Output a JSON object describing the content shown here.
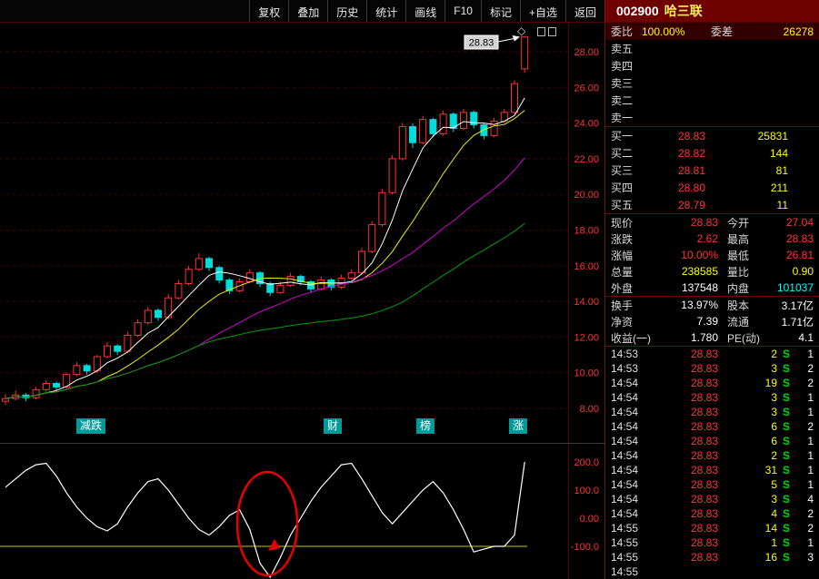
{
  "toolbar": {
    "buttons": [
      "复权",
      "叠加",
      "历史",
      "统计",
      "画线",
      "F10",
      "标记",
      "+自选",
      "返回"
    ]
  },
  "header": {
    "code": "002900",
    "name": "哈三联"
  },
  "icons": {
    "diamond": "◇"
  },
  "ticker_items": [
    "减跌",
    "财",
    "榜",
    "涨"
  ],
  "colors": {
    "up": "#ff3232",
    "down": "#00dcdc",
    "ma": [
      "#ffffff",
      "#f0f000",
      "#d400d4",
      "#00a000"
    ],
    "axis_text": "#ff3232",
    "grid": "#4a0000",
    "indicator_line": "#ffffff",
    "threshold_line": "#c8c800",
    "annotation": "#e60000",
    "tag_bg": "#d4d4d4"
  },
  "chart_data": [
    {
      "type": "candlestick",
      "title": "002900 哈三联 日K线",
      "last_price": 28.83,
      "last_price_label": "28.83",
      "ma_periods": [
        5,
        10,
        20,
        40
      ],
      "ylim": [
        7.5,
        29.5
      ],
      "y_ticks": [
        28,
        26,
        24,
        22,
        20,
        18,
        16,
        14,
        12,
        10,
        8
      ],
      "y_tick_labels": [
        "28.00",
        "26.00",
        "24.00",
        "22.00",
        "20.00",
        "18.00",
        "16.00",
        "14.00",
        "12.00",
        "10.00",
        "8.00"
      ],
      "ohlc": [
        [
          8.4,
          8.8,
          8.2,
          8.55
        ],
        [
          8.55,
          9.0,
          8.45,
          8.75
        ],
        [
          8.75,
          8.85,
          8.4,
          8.6
        ],
        [
          8.6,
          9.2,
          8.5,
          9.05
        ],
        [
          9.05,
          9.6,
          8.95,
          9.4
        ],
        [
          9.4,
          9.5,
          9.0,
          9.2
        ],
        [
          9.2,
          10.0,
          9.1,
          9.9
        ],
        [
          9.9,
          10.6,
          9.8,
          10.4
        ],
        [
          10.4,
          10.5,
          9.9,
          10.1
        ],
        [
          10.1,
          11.0,
          10.0,
          10.9
        ],
        [
          10.9,
          11.7,
          10.8,
          11.5
        ],
        [
          11.5,
          11.6,
          11.0,
          11.2
        ],
        [
          11.2,
          12.3,
          11.1,
          12.1
        ],
        [
          12.1,
          13.0,
          12.0,
          12.8
        ],
        [
          12.8,
          13.7,
          12.7,
          13.5
        ],
        [
          13.5,
          13.6,
          12.9,
          13.1
        ],
        [
          13.1,
          14.4,
          13.0,
          14.2
        ],
        [
          14.2,
          15.2,
          14.1,
          15.0
        ],
        [
          15.0,
          16.0,
          14.9,
          15.8
        ],
        [
          15.8,
          16.7,
          15.7,
          16.4
        ],
        [
          16.4,
          16.5,
          15.7,
          15.9
        ],
        [
          15.9,
          16.0,
          15.0,
          15.2
        ],
        [
          15.2,
          15.3,
          14.4,
          14.6
        ],
        [
          14.6,
          15.3,
          14.5,
          15.1
        ],
        [
          15.1,
          15.8,
          15.0,
          15.6
        ],
        [
          15.6,
          15.7,
          14.8,
          15.0
        ],
        [
          15.0,
          15.1,
          14.3,
          14.5
        ],
        [
          14.5,
          15.1,
          14.4,
          14.9
        ],
        [
          14.9,
          15.6,
          14.8,
          15.4
        ],
        [
          15.4,
          15.5,
          14.9,
          15.1
        ],
        [
          15.1,
          15.2,
          14.5,
          14.7
        ],
        [
          14.7,
          15.4,
          14.6,
          15.2
        ],
        [
          15.2,
          15.3,
          14.6,
          14.8
        ],
        [
          14.8,
          15.5,
          14.7,
          15.3
        ],
        [
          15.3,
          15.8,
          15.2,
          15.6
        ],
        [
          15.6,
          17.0,
          15.5,
          16.8
        ],
        [
          16.8,
          18.5,
          16.7,
          18.3
        ],
        [
          18.3,
          20.3,
          18.2,
          20.1
        ],
        [
          20.1,
          22.2,
          20.0,
          22.0
        ],
        [
          22.0,
          24.0,
          21.9,
          23.8
        ],
        [
          23.8,
          24.0,
          22.6,
          22.9
        ],
        [
          22.9,
          24.4,
          22.8,
          24.2
        ],
        [
          24.2,
          24.3,
          23.2,
          23.4
        ],
        [
          23.4,
          24.7,
          23.3,
          24.5
        ],
        [
          24.5,
          24.6,
          23.5,
          23.7
        ],
        [
          23.7,
          24.8,
          23.6,
          24.6
        ],
        [
          24.6,
          24.7,
          23.7,
          23.9
        ],
        [
          23.9,
          24.0,
          23.1,
          23.3
        ],
        [
          23.3,
          24.3,
          23.2,
          24.1
        ],
        [
          24.1,
          24.8,
          24.0,
          24.6
        ],
        [
          24.6,
          26.4,
          24.5,
          26.21
        ],
        [
          27.04,
          28.83,
          26.81,
          28.83
        ]
      ]
    },
    {
      "type": "line",
      "name": "oscillator",
      "ylim": [
        -250,
        250
      ],
      "y_ticks": [
        200,
        100,
        0,
        -100
      ],
      "y_tick_labels": [
        "200.0",
        "100.0",
        "0.00",
        "-100.0"
      ],
      "threshold": -100,
      "annotation": "red-circle-highlight-on-dip",
      "values": [
        110,
        140,
        170,
        190,
        195,
        150,
        90,
        40,
        0,
        -30,
        -45,
        -20,
        40,
        90,
        130,
        140,
        100,
        50,
        0,
        -40,
        -60,
        -30,
        10,
        30,
        -40,
        -160,
        -210,
        -140,
        -60,
        0,
        60,
        110,
        150,
        190,
        195,
        140,
        80,
        20,
        -20,
        20,
        60,
        100,
        130,
        90,
        30,
        -40,
        -120,
        -110,
        -100,
        -100,
        -60,
        200
      ]
    }
  ],
  "panel": {
    "weibi": {
      "label": "委比",
      "value": "100.00%",
      "label2": "委差",
      "value2": "26278"
    },
    "asks": [
      {
        "label": "卖五",
        "price": "",
        "vol": ""
      },
      {
        "label": "卖四",
        "price": "",
        "vol": ""
      },
      {
        "label": "卖三",
        "price": "",
        "vol": ""
      },
      {
        "label": "卖二",
        "price": "",
        "vol": ""
      },
      {
        "label": "卖一",
        "price": "",
        "vol": ""
      }
    ],
    "bids": [
      {
        "label": "买一",
        "price": "28.83",
        "vol": "25831"
      },
      {
        "label": "买二",
        "price": "28.82",
        "vol": "144"
      },
      {
        "label": "买三",
        "price": "28.81",
        "vol": "81"
      },
      {
        "label": "买四",
        "price": "28.80",
        "vol": "211"
      },
      {
        "label": "买五",
        "price": "28.79",
        "vol": "11"
      }
    ],
    "quote_a": [
      {
        "l1": "现价",
        "v1": "28.83",
        "c1": "up",
        "l2": "今开",
        "v2": "27.04",
        "c2": "up"
      },
      {
        "l1": "涨跌",
        "v1": "2.62",
        "c1": "up",
        "l2": "最高",
        "v2": "28.83",
        "c2": "up"
      },
      {
        "l1": "涨幅",
        "v1": "10.00%",
        "c1": "up",
        "l2": "最低",
        "v2": "26.81",
        "c2": "up"
      },
      {
        "l1": "总量",
        "v1": "238585",
        "c1": "yellow",
        "l2": "量比",
        "v2": "0.90",
        "c2": "yellow"
      },
      {
        "l1": "外盘",
        "v1": "137548",
        "c1": "white",
        "l2": "内盘",
        "v2": "101037",
        "c2": "cyan"
      }
    ],
    "quote_b": [
      {
        "l1": "换手",
        "v1": "13.97%",
        "c1": "white",
        "l2": "股本",
        "v2": "3.17亿",
        "c2": "white"
      },
      {
        "l1": "净资",
        "v1": "7.39",
        "c1": "white",
        "l2": "流通",
        "v2": "1.71亿",
        "c2": "white"
      },
      {
        "l1": "收益(一)",
        "v1": "1.780",
        "c1": "white",
        "l2": "PE(动)",
        "v2": "4.1",
        "c2": "white"
      }
    ],
    "ticks": [
      [
        "14:53",
        "28.83",
        "2",
        "S",
        "1"
      ],
      [
        "14:53",
        "28.83",
        "3",
        "S",
        "2"
      ],
      [
        "14:54",
        "28.83",
        "19",
        "S",
        "2"
      ],
      [
        "14:54",
        "28.83",
        "3",
        "S",
        "1"
      ],
      [
        "14:54",
        "28.83",
        "3",
        "S",
        "1"
      ],
      [
        "14:54",
        "28.83",
        "6",
        "S",
        "2"
      ],
      [
        "14:54",
        "28.83",
        "6",
        "S",
        "1"
      ],
      [
        "14:54",
        "28.83",
        "2",
        "S",
        "1"
      ],
      [
        "14:54",
        "28.83",
        "31",
        "S",
        "1"
      ],
      [
        "14:54",
        "28.83",
        "5",
        "S",
        "1"
      ],
      [
        "14:54",
        "28.83",
        "3",
        "S",
        "4"
      ],
      [
        "14:54",
        "28.83",
        "4",
        "S",
        "2"
      ],
      [
        "14:55",
        "28.83",
        "14",
        "S",
        "2"
      ],
      [
        "14:55",
        "28.83",
        "1",
        "S",
        "1"
      ],
      [
        "14:55",
        "28.83",
        "16",
        "S",
        "3"
      ],
      [
        "14:55",
        "",
        "",
        "",
        ""
      ]
    ]
  }
}
